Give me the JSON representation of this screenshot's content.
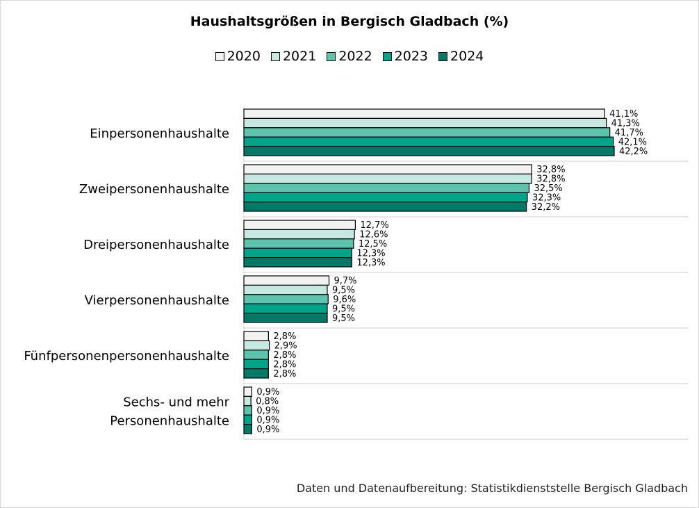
{
  "chart_data": {
    "type": "bar",
    "orientation": "horizontal",
    "title": "Haushaltsgrößen in Bergisch Gladbach (%)",
    "categories": [
      "Einpersonenhaushalte",
      "Zweipersonenhaushalte",
      "Dreipersonenhaushalte",
      "Vierpersonenhaushalte",
      "Fünfpersonenpersonenhaushalte",
      "Sechs- und mehr Personenhaushalte"
    ],
    "category_lines": [
      [
        "Einpersonenhaushalte"
      ],
      [
        "Zweipersonenhaushalte"
      ],
      [
        "Dreipersonenhaushalte"
      ],
      [
        "Vierpersonenhaushalte"
      ],
      [
        "Fünfpersonenpersonenhaushalte"
      ],
      [
        "Sechs- und mehr ",
        "Personenhaushalte"
      ]
    ],
    "series": [
      {
        "name": "2020",
        "color": "#f2f2f2",
        "values": [
          41.1,
          32.8,
          12.7,
          9.7,
          2.8,
          0.9
        ],
        "labels": [
          "41,1%",
          "32,8%",
          "12,7%",
          "9,7%",
          "2,8%",
          "0,9%"
        ]
      },
      {
        "name": "2021",
        "color": "#c5e9e1",
        "values": [
          41.3,
          32.8,
          12.6,
          9.5,
          2.9,
          0.8
        ],
        "labels": [
          "41,3%",
          "32,8%",
          "12,6%",
          "9,5%",
          "2,9%",
          "0,8%"
        ]
      },
      {
        "name": "2022",
        "color": "#5cc4ad",
        "values": [
          41.7,
          32.5,
          12.5,
          9.6,
          2.8,
          0.9
        ],
        "labels": [
          "41,7%",
          "32,5%",
          "12,5%",
          "9,6%",
          "2,8%",
          "0,9%"
        ]
      },
      {
        "name": "2023",
        "color": "#00a48a",
        "values": [
          42.1,
          32.3,
          12.3,
          9.5,
          2.8,
          0.9
        ],
        "labels": [
          "42,1%",
          "32,3%",
          "12,3%",
          "9,5%",
          "2,8%",
          "0,9%"
        ]
      },
      {
        "name": "2024",
        "color": "#007a68",
        "values": [
          42.2,
          32.2,
          12.3,
          9.5,
          2.8,
          0.9
        ],
        "labels": [
          "42,2%",
          "32,2%",
          "12,3%",
          "9,5%",
          "2,8%",
          "0,9%"
        ]
      }
    ],
    "xlim": [
      0,
      100
    ],
    "grid": false,
    "legend_position": "top"
  },
  "footer": "Daten und Datenaufbereitung: Statistikdienststelle Bergisch Gladbach"
}
